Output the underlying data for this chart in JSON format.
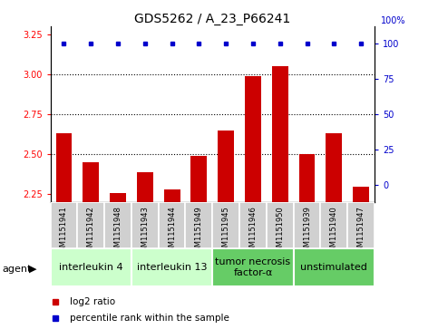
{
  "title": "GDS5262 / A_23_P66241",
  "samples": [
    "GSM1151941",
    "GSM1151942",
    "GSM1151948",
    "GSM1151943",
    "GSM1151944",
    "GSM1151949",
    "GSM1151945",
    "GSM1151946",
    "GSM1151950",
    "GSM1151939",
    "GSM1151940",
    "GSM1151947"
  ],
  "log2_values": [
    2.63,
    2.45,
    2.26,
    2.39,
    2.28,
    2.49,
    2.65,
    2.99,
    3.05,
    2.5,
    2.63,
    2.3
  ],
  "percentile_values": [
    100,
    100,
    100,
    100,
    100,
    100,
    100,
    100,
    100,
    100,
    100,
    100
  ],
  "ylim_left": [
    2.2,
    3.3
  ],
  "ylim_right": [
    -12.5,
    112.5
  ],
  "yticks_left": [
    2.25,
    2.5,
    2.75,
    3.0,
    3.25
  ],
  "yticks_right": [
    0,
    25,
    50,
    75,
    100
  ],
  "dotted_lines": [
    2.5,
    2.75,
    3.0
  ],
  "agents": [
    {
      "label": "interleukin 4",
      "indices": [
        0,
        1,
        2
      ],
      "color": "#ccffcc"
    },
    {
      "label": "interleukin 13",
      "indices": [
        3,
        4,
        5
      ],
      "color": "#ccffcc"
    },
    {
      "label": "tumor necrosis\nfactor-α",
      "indices": [
        6,
        7,
        8
      ],
      "color": "#66cc66"
    },
    {
      "label": "unstimulated",
      "indices": [
        9,
        10,
        11
      ],
      "color": "#66cc66"
    }
  ],
  "bar_color": "#cc0000",
  "percentile_color": "#0000cc",
  "background_color": "#ffffff",
  "sample_box_color": "#d0d0d0",
  "legend_bar_label": "log2 ratio",
  "legend_dot_label": "percentile rank within the sample",
  "title_fontsize": 10,
  "tick_fontsize": 7,
  "sample_fontsize": 6,
  "agent_fontsize": 8,
  "legend_fontsize": 7.5
}
